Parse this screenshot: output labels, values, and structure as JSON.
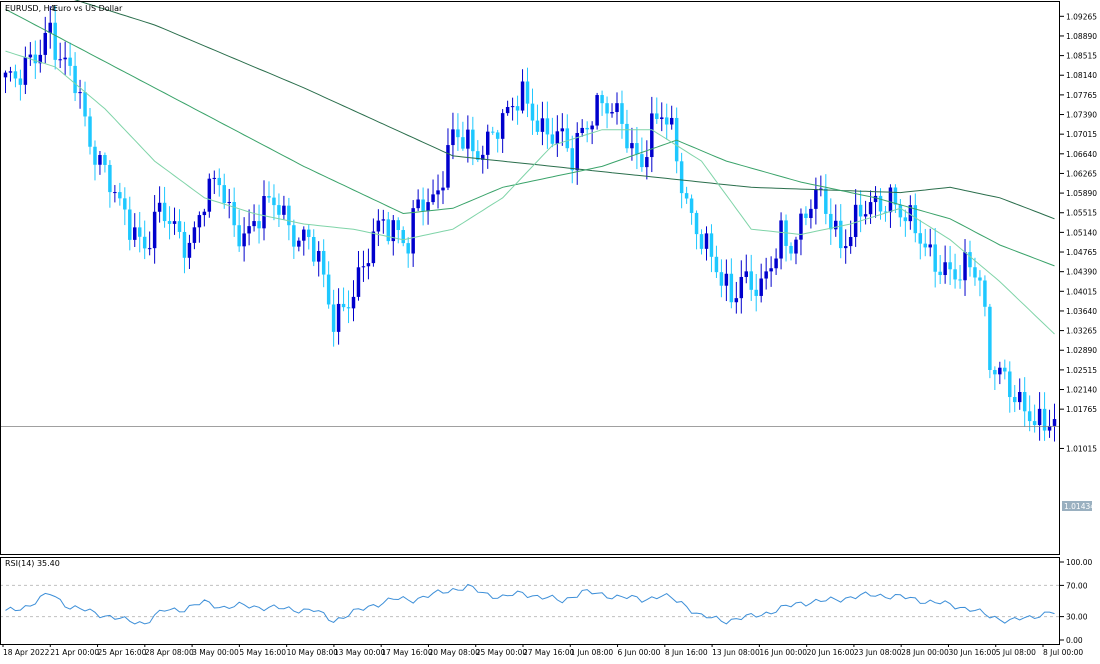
{
  "header": {
    "symbol_label": "EURUSD, H4:",
    "description": "Euro vs US Dollar"
  },
  "rsi_label": "RSI(14) 35.40",
  "current_price_label": "1.01434",
  "colors": {
    "background": "#ffffff",
    "grid": "#c0c0c0",
    "bull_candle": "#0000cd",
    "bear_candle": "#1ec8ff",
    "ma_fast": "#7fd4a8",
    "ma_mid": "#3aa36a",
    "ma_slow": "#2a6e4c",
    "rsi_line": "#3d8fd8",
    "price_line": "#808080",
    "price_tag_bg": "#9ab0c0"
  },
  "chart_data": [
    {
      "type": "candlestick",
      "title": "EURUSD, H4: Euro vs US Dollar",
      "ylim": [
        0.99,
        1.095
      ],
      "y_ticks": [
        "1.09265",
        "1.08890",
        "1.08515",
        "1.08140",
        "1.07765",
        "1.07390",
        "1.07015",
        "1.06640",
        "1.06265",
        "1.05890",
        "1.05515",
        "1.05140",
        "1.04765",
        "1.04390",
        "1.04015",
        "1.03640",
        "1.03265",
        "1.02890",
        "1.02515",
        "1.02140",
        "1.01765",
        "1.01015"
      ],
      "x_ticks": [
        "18 Apr 2022",
        "21 Apr 00:00",
        "25 Apr 16:00",
        "28 Apr 08:00",
        "3 May 00:00",
        "5 May 16:00",
        "10 May 08:00",
        "13 May 00:00",
        "17 May 16:00",
        "20 May 08:00",
        "25 May 00:00",
        "27 May 16:00",
        "1 Jun 08:00",
        "6 Jun 00:00",
        "8 Jun 16:00",
        "13 Jun 08:00",
        "16 Jun 00:00",
        "20 Jun 16:00",
        "23 Jun 08:00",
        "28 Jun 00:00",
        "30 Jun 16:00",
        "5 Jul 08:00",
        "8 Jul 00:00"
      ],
      "current_price": 1.01434,
      "close_path": [
        [
          0,
          1.081
        ],
        [
          2,
          1.079
        ],
        [
          5,
          1.084
        ],
        [
          7,
          1.088
        ],
        [
          9,
          1.091
        ],
        [
          11,
          1.083
        ],
        [
          14,
          1.08
        ],
        [
          17,
          1.07
        ],
        [
          20,
          1.063
        ],
        [
          23,
          1.055
        ],
        [
          26,
          1.052
        ],
        [
          28,
          1.05
        ],
        [
          31,
          1.055
        ],
        [
          34,
          1.051
        ],
        [
          37,
          1.05
        ],
        [
          40,
          1.058
        ],
        [
          43,
          1.06
        ],
        [
          46,
          1.053
        ],
        [
          49,
          1.052
        ],
        [
          52,
          1.055
        ],
        [
          55,
          1.057
        ],
        [
          58,
          1.052
        ],
        [
          61,
          1.049
        ],
        [
          63,
          1.045
        ],
        [
          65,
          1.038
        ],
        [
          66,
          1.036
        ],
        [
          68,
          1.038
        ],
        [
          70,
          1.04
        ],
        [
          72,
          1.043
        ],
        [
          74,
          1.05
        ],
        [
          76,
          1.055
        ],
        [
          79,
          1.052
        ],
        [
          81,
          1.048
        ],
        [
          83,
          1.056
        ],
        [
          86,
          1.058
        ],
        [
          88,
          1.064
        ],
        [
          90,
          1.07
        ],
        [
          92,
          1.068
        ],
        [
          94,
          1.066
        ],
        [
          96,
          1.068
        ],
        [
          98,
          1.072
        ],
        [
          101,
          1.073
        ],
        [
          104,
          1.077
        ],
        [
          106,
          1.075
        ],
        [
          108,
          1.072
        ],
        [
          110,
          1.07
        ],
        [
          112,
          1.068
        ],
        [
          114,
          1.065
        ],
        [
          116,
          1.072
        ],
        [
          118,
          1.075
        ],
        [
          120,
          1.076
        ],
        [
          122,
          1.073
        ],
        [
          124,
          1.072
        ],
        [
          126,
          1.068
        ],
        [
          128,
          1.066
        ],
        [
          130,
          1.071
        ],
        [
          132,
          1.073
        ],
        [
          134,
          1.07
        ],
        [
          136,
          1.062
        ],
        [
          138,
          1.055
        ],
        [
          140,
          1.05
        ],
        [
          142,
          1.045
        ],
        [
          144,
          1.042
        ],
        [
          146,
          1.04
        ],
        [
          148,
          1.044
        ],
        [
          150,
          1.041
        ],
        [
          152,
          1.039
        ],
        [
          154,
          1.045
        ],
        [
          156,
          1.052
        ],
        [
          158,
          1.05
        ],
        [
          160,
          1.052
        ],
        [
          162,
          1.056
        ],
        [
          164,
          1.058
        ],
        [
          166,
          1.055
        ],
        [
          168,
          1.05
        ],
        [
          170,
          1.051
        ],
        [
          172,
          1.054
        ],
        [
          174,
          1.056
        ],
        [
          176,
          1.058
        ],
        [
          178,
          1.059
        ],
        [
          180,
          1.055
        ],
        [
          182,
          1.052
        ],
        [
          184,
          1.05
        ],
        [
          186,
          1.048
        ],
        [
          188,
          1.046
        ],
        [
          190,
          1.043
        ],
        [
          192,
          1.042
        ],
        [
          194,
          1.045
        ],
        [
          196,
          1.044
        ],
        [
          198,
          1.028
        ],
        [
          200,
          1.024
        ],
        [
          202,
          1.02
        ],
        [
          204,
          1.018
        ],
        [
          206,
          1.018
        ],
        [
          208,
          1.016
        ],
        [
          210,
          1.015
        ],
        [
          211,
          1.014
        ]
      ],
      "ma_fast_path": [
        [
          0,
          1.086
        ],
        [
          10,
          1.083
        ],
        [
          20,
          1.075
        ],
        [
          30,
          1.065
        ],
        [
          40,
          1.058
        ],
        [
          50,
          1.055
        ],
        [
          60,
          1.053
        ],
        [
          70,
          1.052
        ],
        [
          80,
          1.05
        ],
        [
          90,
          1.052
        ],
        [
          100,
          1.058
        ],
        [
          110,
          1.068
        ],
        [
          120,
          1.071
        ],
        [
          130,
          1.071
        ],
        [
          140,
          1.065
        ],
        [
          150,
          1.052
        ],
        [
          160,
          1.051
        ],
        [
          170,
          1.053
        ],
        [
          180,
          1.056
        ],
        [
          190,
          1.05
        ],
        [
          200,
          1.042
        ],
        [
          211,
          1.032
        ]
      ],
      "ma_mid_path": [
        [
          0,
          1.094
        ],
        [
          20,
          1.084
        ],
        [
          40,
          1.074
        ],
        [
          60,
          1.064
        ],
        [
          80,
          1.055
        ],
        [
          90,
          1.056
        ],
        [
          100,
          1.06
        ],
        [
          120,
          1.064
        ],
        [
          135,
          1.069
        ],
        [
          145,
          1.065
        ],
        [
          160,
          1.061
        ],
        [
          175,
          1.058
        ],
        [
          190,
          1.054
        ],
        [
          200,
          1.049
        ],
        [
          211,
          1.045
        ]
      ],
      "ma_slow_path": [
        [
          0,
          1.1
        ],
        [
          30,
          1.091
        ],
        [
          60,
          1.079
        ],
        [
          90,
          1.066
        ],
        [
          120,
          1.063
        ],
        [
          150,
          1.06
        ],
        [
          180,
          1.059
        ],
        [
          190,
          1.06
        ],
        [
          200,
          1.058
        ],
        [
          211,
          1.054
        ]
      ]
    },
    {
      "type": "line",
      "title": "RSI(14) 35.40",
      "ylim": [
        0,
        100
      ],
      "y_ticks": [
        "100.00",
        "70.00",
        "30.00",
        "0.00"
      ],
      "levels": [
        70,
        30
      ],
      "path": [
        [
          0,
          36
        ],
        [
          5,
          45
        ],
        [
          9,
          60
        ],
        [
          13,
          42
        ],
        [
          18,
          35
        ],
        [
          24,
          25
        ],
        [
          28,
          22
        ],
        [
          32,
          38
        ],
        [
          36,
          40
        ],
        [
          40,
          48
        ],
        [
          44,
          42
        ],
        [
          48,
          44
        ],
        [
          52,
          42
        ],
        [
          56,
          40
        ],
        [
          62,
          38
        ],
        [
          66,
          25
        ],
        [
          70,
          35
        ],
        [
          74,
          45
        ],
        [
          78,
          52
        ],
        [
          82,
          52
        ],
        [
          86,
          58
        ],
        [
          90,
          65
        ],
        [
          93,
          68
        ],
        [
          96,
          60
        ],
        [
          100,
          55
        ],
        [
          104,
          60
        ],
        [
          108,
          55
        ],
        [
          112,
          50
        ],
        [
          116,
          62
        ],
        [
          120,
          58
        ],
        [
          124,
          55
        ],
        [
          128,
          52
        ],
        [
          132,
          57
        ],
        [
          136,
          48
        ],
        [
          140,
          30
        ],
        [
          145,
          25
        ],
        [
          150,
          30
        ],
        [
          155,
          38
        ],
        [
          160,
          48
        ],
        [
          165,
          50
        ],
        [
          170,
          55
        ],
        [
          175,
          58
        ],
        [
          180,
          55
        ],
        [
          185,
          50
        ],
        [
          190,
          45
        ],
        [
          194,
          40
        ],
        [
          198,
          30
        ],
        [
          202,
          25
        ],
        [
          206,
          28
        ],
        [
          208,
          33
        ],
        [
          210,
          36
        ],
        [
          211,
          35.4
        ]
      ]
    }
  ]
}
